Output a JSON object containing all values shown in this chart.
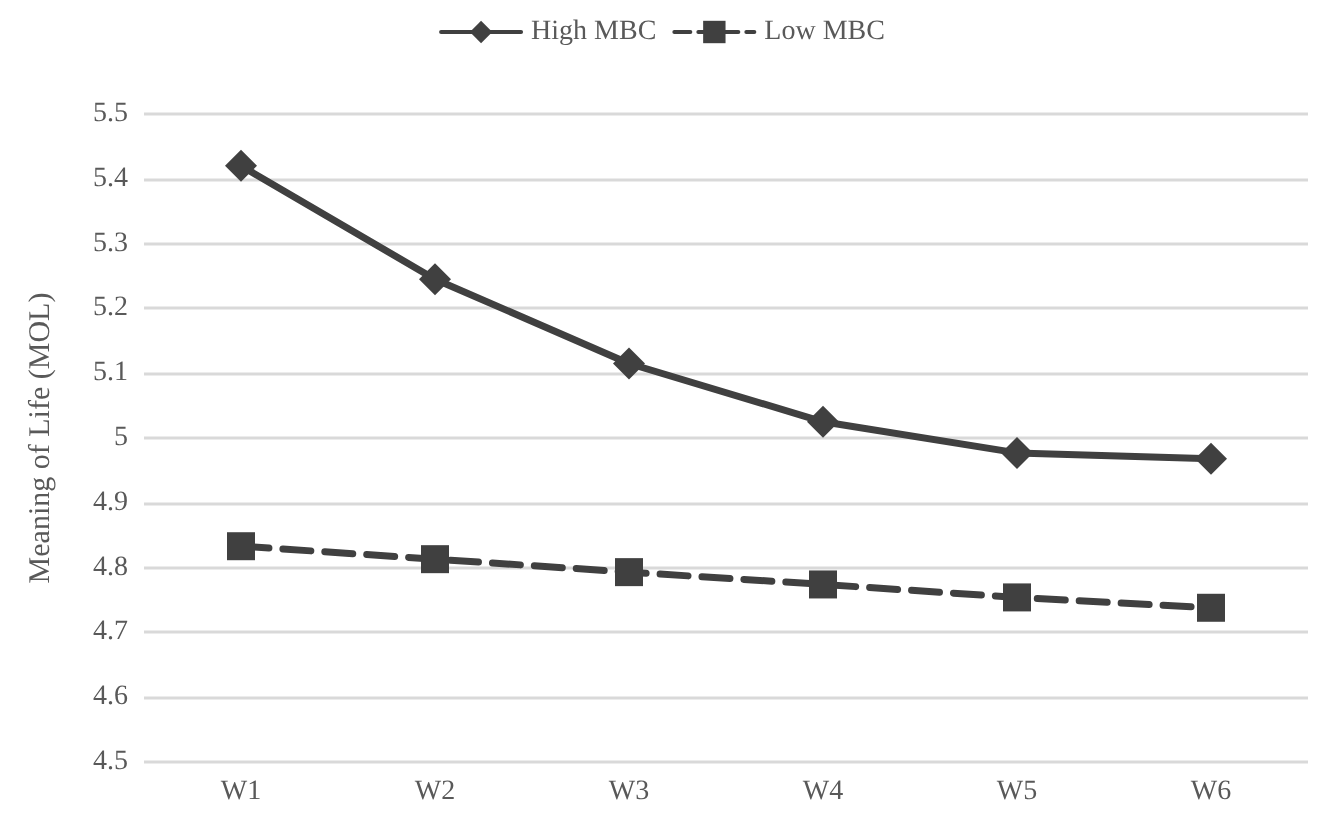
{
  "chart_data": {
    "type": "line",
    "ylabel": "Meaning of Life (MOL)",
    "categories": [
      "W1",
      "W2",
      "W3",
      "W4",
      "W5",
      "W6"
    ],
    "series": [
      {
        "name": "High MBC",
        "color": "#404040",
        "marker": "diamond",
        "line_style": "solid",
        "values": [
          5.42,
          5.245,
          5.115,
          5.025,
          4.977,
          4.968
        ]
      },
      {
        "name": "Low MBC",
        "color": "#404040",
        "marker": "square",
        "line_style": "dashed",
        "values": [
          4.833,
          4.813,
          4.793,
          4.774,
          4.754,
          4.738
        ]
      }
    ],
    "ylim": [
      4.5,
      5.5
    ],
    "yticks": [
      4.5,
      4.6,
      4.7,
      4.8,
      4.9,
      5,
      5.1,
      5.2,
      5.3,
      5.4,
      5.5
    ],
    "grid": "y",
    "legend": "top"
  }
}
